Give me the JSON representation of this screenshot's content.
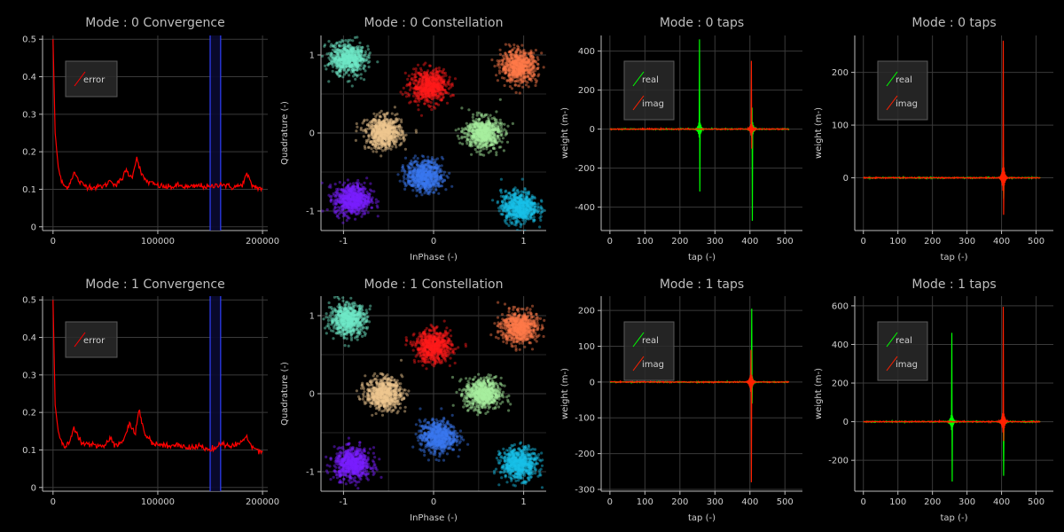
{
  "colors": {
    "background": "#000000",
    "grid": "#3a3a3a",
    "axis": "#bdbdbd",
    "error": "#ff0000",
    "real": "#00ff00",
    "imag": "#ff2000",
    "window_band": "#3040ff",
    "legend_bg": "#2a2a2a"
  },
  "chart_data": [
    {
      "id": "conv0",
      "type": "line",
      "title": "Mode : 0 Convergence",
      "xlabel": "",
      "ylabel": "",
      "xlim": [
        -10000,
        205000
      ],
      "ylim": [
        -0.01,
        0.51
      ],
      "xticks": [
        0,
        100000,
        200000
      ],
      "yticks": [
        0,
        0.1,
        0.2,
        0.3,
        0.4,
        0.5
      ],
      "legend": [
        "error"
      ],
      "legend_position": "top-left",
      "window_band": [
        150000,
        160000
      ],
      "series": [
        {
          "name": "error",
          "color": "#ff0000",
          "x": [
            0,
            2000,
            5000,
            8000,
            12000,
            15000,
            20000,
            25000,
            30000,
            40000,
            50000,
            55000,
            60000,
            65000,
            70000,
            75000,
            80000,
            85000,
            90000,
            100000,
            110000,
            120000,
            130000,
            140000,
            150000,
            160000,
            170000,
            180000,
            185000,
            190000,
            200000
          ],
          "y": [
            0.5,
            0.25,
            0.16,
            0.12,
            0.105,
            0.11,
            0.145,
            0.12,
            0.11,
            0.105,
            0.11,
            0.125,
            0.11,
            0.125,
            0.15,
            0.13,
            0.185,
            0.135,
            0.12,
            0.11,
            0.105,
            0.11,
            0.105,
            0.11,
            0.105,
            0.115,
            0.105,
            0.11,
            0.14,
            0.11,
            0.1
          ]
        }
      ]
    },
    {
      "id": "const0",
      "type": "scatter",
      "title": "Mode : 0 Constellation",
      "xlabel": "InPhase (-)",
      "ylabel": "Quadrature (-)",
      "xlim": [
        -1.25,
        1.25
      ],
      "ylim": [
        -1.25,
        1.25
      ],
      "xticks": [
        -1,
        0,
        1
      ],
      "yticks": [
        -1,
        0,
        1
      ],
      "clusters": [
        {
          "center": [
            -0.95,
            0.95
          ],
          "color": "#6ee8c8"
        },
        {
          "center": [
            -0.05,
            0.6
          ],
          "color": "#ff1a1a"
        },
        {
          "center": [
            0.95,
            0.85
          ],
          "color": "#ff7a4a"
        },
        {
          "center": [
            -0.55,
            0.0
          ],
          "color": "#f0c890"
        },
        {
          "center": [
            0.55,
            0.0
          ],
          "color": "#a8f0a0"
        },
        {
          "center": [
            -0.1,
            -0.55
          ],
          "color": "#3a78f0"
        },
        {
          "center": [
            -0.9,
            -0.85
          ],
          "color": "#7a20ff"
        },
        {
          "center": [
            0.95,
            -0.95
          ],
          "color": "#18c0e8"
        }
      ]
    },
    {
      "id": "taps00",
      "type": "line",
      "title": "Mode : 0 taps",
      "xlabel": "tap (-)",
      "ylabel": "weight (m-)",
      "xlim": [
        -25,
        550
      ],
      "ylim": [
        -520,
        480
      ],
      "xticks": [
        0,
        100,
        200,
        300,
        400,
        500
      ],
      "yticks": [
        -400,
        -200,
        0,
        200,
        400
      ],
      "legend": [
        "real",
        "imag"
      ],
      "legend_position": "top-left",
      "spikes": [
        {
          "series": "real",
          "tap": 256,
          "pos": 460,
          "neg": -320
        },
        {
          "series": "real",
          "tap": 406,
          "pos": 110,
          "neg": -470
        },
        {
          "series": "imag",
          "tap": 404,
          "pos": 350,
          "neg": -100
        }
      ]
    },
    {
      "id": "taps01",
      "type": "line",
      "title": "Mode : 0 taps",
      "xlabel": "tap (-)",
      "ylabel": "weight (m-)",
      "xlim": [
        -25,
        550
      ],
      "ylim": [
        -100,
        270
      ],
      "xticks": [
        0,
        100,
        200,
        300,
        400,
        500
      ],
      "yticks": [
        0,
        100,
        200
      ],
      "legend": [
        "real",
        "imag"
      ],
      "legend_position": "top-left",
      "spikes": [
        {
          "series": "real",
          "tap": 405,
          "pos": 40,
          "neg": -40
        },
        {
          "series": "imag",
          "tap": 405,
          "pos": 260,
          "neg": -70
        }
      ]
    },
    {
      "id": "conv1",
      "type": "line",
      "title": "Mode : 1 Convergence",
      "xlabel": "",
      "ylabel": "",
      "xlim": [
        -10000,
        205000
      ],
      "ylim": [
        -0.01,
        0.51
      ],
      "xticks": [
        0,
        100000,
        200000
      ],
      "yticks": [
        0,
        0.1,
        0.2,
        0.3,
        0.4,
        0.5
      ],
      "legend": [
        "error"
      ],
      "legend_position": "top-left",
      "window_band": [
        150000,
        160000
      ],
      "series": [
        {
          "name": "error",
          "color": "#ff0000",
          "x": [
            0,
            2000,
            5000,
            8000,
            12000,
            15000,
            20000,
            25000,
            30000,
            40000,
            50000,
            55000,
            60000,
            65000,
            70000,
            73000,
            78000,
            82000,
            88000,
            95000,
            100000,
            110000,
            120000,
            130000,
            140000,
            150000,
            160000,
            170000,
            180000,
            185000,
            190000,
            200000
          ],
          "y": [
            0.5,
            0.22,
            0.15,
            0.12,
            0.11,
            0.115,
            0.16,
            0.13,
            0.115,
            0.11,
            0.115,
            0.13,
            0.11,
            0.12,
            0.145,
            0.175,
            0.14,
            0.205,
            0.14,
            0.12,
            0.115,
            0.11,
            0.115,
            0.105,
            0.11,
            0.1,
            0.115,
            0.11,
            0.12,
            0.135,
            0.11,
            0.095
          ]
        }
      ]
    },
    {
      "id": "const1",
      "type": "scatter",
      "title": "Mode : 1 Constellation",
      "xlabel": "InPhase (-)",
      "ylabel": "Quadrature (-)",
      "xlim": [
        -1.25,
        1.25
      ],
      "ylim": [
        -1.25,
        1.25
      ],
      "xticks": [
        -1,
        0,
        1
      ],
      "yticks": [
        -1,
        0,
        1
      ],
      "clusters": [
        {
          "center": [
            -0.95,
            0.95
          ],
          "color": "#6ee8c8"
        },
        {
          "center": [
            0.0,
            0.6
          ],
          "color": "#ff1a1a"
        },
        {
          "center": [
            0.95,
            0.85
          ],
          "color": "#ff7a4a"
        },
        {
          "center": [
            -0.55,
            0.0
          ],
          "color": "#f0c890"
        },
        {
          "center": [
            0.55,
            0.0
          ],
          "color": "#a8f0a0"
        },
        {
          "center": [
            0.05,
            -0.55
          ],
          "color": "#3a78f0"
        },
        {
          "center": [
            -0.9,
            -0.9
          ],
          "color": "#7a20ff"
        },
        {
          "center": [
            0.95,
            -0.9
          ],
          "color": "#18c0e8"
        }
      ]
    },
    {
      "id": "taps10",
      "type": "line",
      "title": "Mode : 1 taps",
      "xlabel": "tap (-)",
      "ylabel": "weight (m-)",
      "xlim": [
        -25,
        550
      ],
      "ylim": [
        -305,
        240
      ],
      "xticks": [
        0,
        100,
        200,
        300,
        400,
        500
      ],
      "yticks": [
        -300,
        -200,
        -100,
        0,
        100,
        200
      ],
      "legend": [
        "real",
        "imag"
      ],
      "legend_position": "top-left",
      "spikes": [
        {
          "series": "real",
          "tap": 405,
          "pos": 205,
          "neg": -60
        },
        {
          "series": "imag",
          "tap": 403,
          "pos": 90,
          "neg": -280
        }
      ]
    },
    {
      "id": "taps11",
      "type": "line",
      "title": "Mode : 1 taps",
      "xlabel": "tap (-)",
      "ylabel": "weight (m-)",
      "xlim": [
        -25,
        550
      ],
      "ylim": [
        -360,
        650
      ],
      "xticks": [
        0,
        100,
        200,
        300,
        400,
        500
      ],
      "yticks": [
        -200,
        0,
        200,
        400,
        600
      ],
      "legend": [
        "real",
        "imag"
      ],
      "legend_position": "top-left",
      "spikes": [
        {
          "series": "real",
          "tap": 256,
          "pos": 460,
          "neg": -310
        },
        {
          "series": "real",
          "tap": 405,
          "pos": 60,
          "neg": -280
        },
        {
          "series": "imag",
          "tap": 405,
          "pos": 595,
          "neg": -100
        }
      ]
    }
  ]
}
